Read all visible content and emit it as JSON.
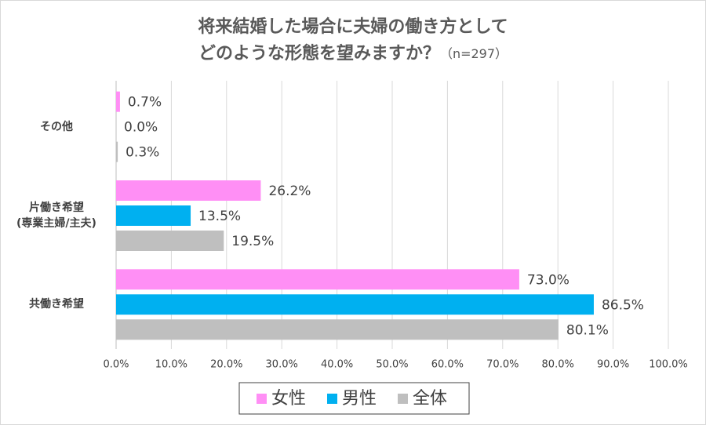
{
  "chart_data": {
    "type": "bar",
    "orientation": "horizontal",
    "title": [
      "将来結婚した場合に夫婦の働き方として",
      "どのような形態を望みますか？"
    ],
    "subtitle": "（n=297）",
    "categories": [
      "その他",
      "片働き希望\n(専業主婦/主夫)",
      "共働き希望"
    ],
    "series": [
      {
        "name": "女性",
        "color": "#ff8ff5",
        "values": [
          0.7,
          26.2,
          73.0
        ],
        "value_labels": [
          "0.7%",
          "26.2%",
          "73.0%"
        ]
      },
      {
        "name": "男性",
        "color": "#00b0f0",
        "values": [
          0.0,
          13.5,
          86.5
        ],
        "value_labels": [
          "0.0%",
          "13.5%",
          "86.5%"
        ]
      },
      {
        "name": "全体",
        "color": "#bfbfbf",
        "values": [
          0.3,
          19.5,
          80.1
        ],
        "value_labels": [
          "0.3%",
          "19.5%",
          "80.1%"
        ]
      }
    ],
    "xlim": [
      0,
      100
    ],
    "xticks": [
      {
        "value": 0,
        "label": "0.0%"
      },
      {
        "value": 10,
        "label": "10.0%"
      },
      {
        "value": 20,
        "label": "20.0%"
      },
      {
        "value": 30,
        "label": "30.0%"
      },
      {
        "value": 40,
        "label": "40.0%"
      },
      {
        "value": 50,
        "label": "50.0%"
      },
      {
        "value": 60,
        "label": "60.0%"
      },
      {
        "value": 70,
        "label": "70.0%"
      },
      {
        "value": 80,
        "label": "80.0%"
      },
      {
        "value": 90,
        "label": "90.0%"
      },
      {
        "value": 100,
        "label": "100.0%"
      }
    ],
    "grid": true,
    "legend": "bottom"
  }
}
